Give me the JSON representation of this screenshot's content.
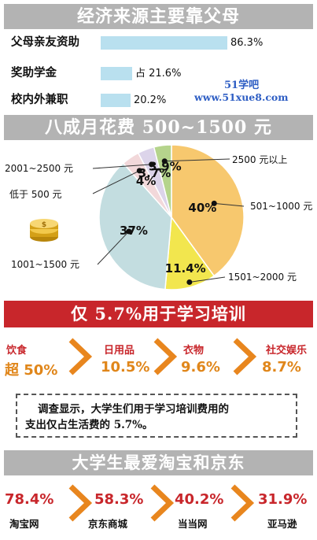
{
  "section1": {
    "title": "经济来源主要靠父母",
    "rows": [
      {
        "label": "父母亲友资助",
        "value_text": "86.3%"
      },
      {
        "label": "奖助学金",
        "value_text": "占 21.6%"
      },
      {
        "label": "校内外兼职",
        "value_text": "20.2%"
      }
    ],
    "watermark_name": "51学吧",
    "watermark_url": "www.51xue8.com"
  },
  "section2": {
    "title": "八成月花费 500~1500 元",
    "slices": [
      {
        "label": "501~1000 元",
        "pct_text": "40%"
      },
      {
        "label": "1501~2000 元",
        "pct_text": "11.4%"
      },
      {
        "label": "1001~1500 元",
        "pct_text": "37%"
      },
      {
        "label": "低于 500 元",
        "pct_text": "4%"
      },
      {
        "label": "2001~2500 元",
        "pct_text": "3.7%"
      },
      {
        "label": "2500 元以上",
        "pct_text": "3.9%"
      }
    ]
  },
  "section3": {
    "title": "仅 5.7%用于学习培训",
    "items": [
      {
        "category": "饮食",
        "value_text": "超 50%"
      },
      {
        "category": "日用品",
        "value_text": "10.5%"
      },
      {
        "category": "衣物",
        "value_text": "9.6%"
      },
      {
        "category": "社交娱乐",
        "value_text": "8.7%"
      }
    ],
    "note_line1": "调查显示，大学生们用于学习培训费用的",
    "note_line2": "支出仅占生活费的 5.7%。"
  },
  "section4": {
    "title": "大学生最爱淘宝和京东",
    "items": [
      {
        "name": "淘宝网",
        "value_text": "78.4%"
      },
      {
        "name": "京东商城",
        "value_text": "58.3%"
      },
      {
        "name": "当当网",
        "value_text": "40.2%"
      },
      {
        "name": "亚马逊",
        "value_text": "31.9%"
      }
    ]
  },
  "colors": {
    "banner_gray": "#b3b3b3",
    "banner_red": "#c8262b",
    "bar_blue": "#b9e0ef",
    "orange": "#e0861a",
    "pie_orange": "#f7c86e",
    "pie_yellow": "#f2e64e",
    "pie_blue": "#c3dde0",
    "pie_pink": "#f2d8da",
    "pie_lavender": "#dcd4ea",
    "pie_green": "#b5d48c"
  },
  "chart_data": [
    {
      "type": "bar",
      "title": "经济来源主要靠父母",
      "categories": [
        "父母亲友资助",
        "奖助学金",
        "校内外兼职"
      ],
      "values": [
        86.3,
        21.6,
        20.2
      ],
      "xlim": [
        0,
        100
      ]
    },
    {
      "type": "pie",
      "title": "八成月花费 500~1500 元",
      "categories": [
        "501~1000 元",
        "1501~2000 元",
        "1001~1500 元",
        "低于 500 元",
        "2001~2500 元",
        "2500 元以上"
      ],
      "values": [
        40,
        11.4,
        37,
        4,
        3.7,
        3.9
      ]
    },
    {
      "type": "table",
      "title": "仅 5.7%用于学习培训",
      "categories": [
        "饮食",
        "日用品",
        "衣物",
        "社交娱乐"
      ],
      "values": [
        50,
        10.5,
        9.6,
        8.7
      ]
    },
    {
      "type": "table",
      "title": "大学生最爱淘宝和京东",
      "categories": [
        "淘宝网",
        "京东商城",
        "当当网",
        "亚马逊"
      ],
      "values": [
        78.4,
        58.3,
        40.2,
        31.9
      ]
    }
  ]
}
